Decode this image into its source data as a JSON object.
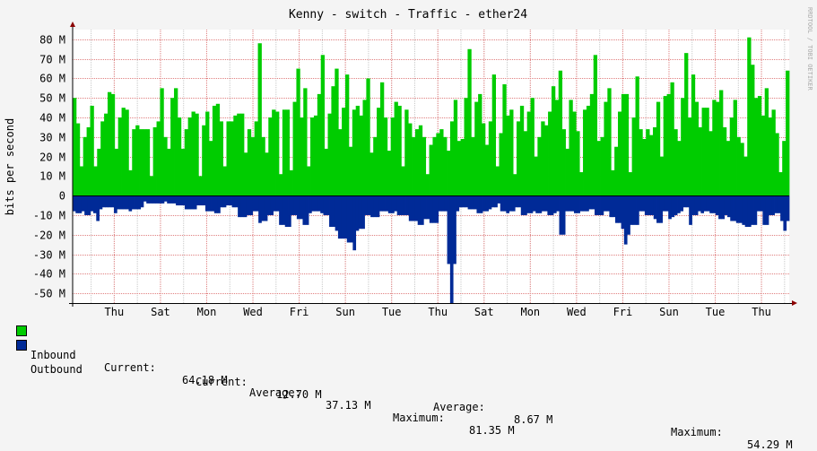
{
  "chart_data": {
    "type": "area",
    "title": "Kenny - switch - Traffic - ether24",
    "ylabel": "bits per second",
    "xlabel": "",
    "watermark": "RRDTOOL / TOBI OETIKER",
    "ylim": [
      -55,
      85
    ],
    "yticks": [
      {
        "v": 80,
        "label": "80 M"
      },
      {
        "v": 70,
        "label": "70 M"
      },
      {
        "v": 60,
        "label": "60 M"
      },
      {
        "v": 50,
        "label": "50 M"
      },
      {
        "v": 40,
        "label": "40 M"
      },
      {
        "v": 30,
        "label": "30 M"
      },
      {
        "v": 20,
        "label": "20 M"
      },
      {
        "v": 10,
        "label": "10 M"
      },
      {
        "v": 0,
        "label": "0"
      },
      {
        "v": -10,
        "label": "-10 M"
      },
      {
        "v": -20,
        "label": "-20 M"
      },
      {
        "v": -30,
        "label": "-30 M"
      },
      {
        "v": -40,
        "label": "-40 M"
      },
      {
        "v": -50,
        "label": "-50 M"
      }
    ],
    "day_ticks": [
      "Thu",
      "Sat",
      "Mon",
      "Wed",
      "Fri",
      "Sun",
      "Tue",
      "Thu",
      "Sat",
      "Mon",
      "Wed",
      "Fri",
      "Sun",
      "Tue",
      "Thu"
    ],
    "grid": true,
    "colors": {
      "inbound": "#00cc00",
      "outbound": "#002a97",
      "grid_major": "#e08080",
      "grid_minor": "#c8c8c8",
      "zero": "#000000"
    },
    "series": [
      {
        "name": "Inbound",
        "values": [
          50,
          37,
          15,
          30,
          35,
          46,
          15,
          24,
          38,
          42,
          53,
          52,
          24,
          40,
          45,
          44,
          13,
          34,
          36,
          34,
          34,
          34,
          10,
          35,
          38,
          55,
          30,
          24,
          50,
          55,
          40,
          24,
          34,
          40,
          43,
          42,
          10,
          36,
          43,
          28,
          46,
          47,
          38,
          15,
          38,
          38,
          41,
          42,
          42,
          22,
          34,
          30,
          38,
          78,
          30,
          22,
          40,
          44,
          43,
          11,
          44,
          44,
          13,
          48,
          65,
          40,
          55,
          15,
          40,
          41,
          52,
          72,
          24,
          42,
          56,
          65,
          34,
          45,
          62,
          25,
          44,
          46,
          41,
          49,
          60,
          22,
          30,
          45,
          58,
          40,
          23,
          40,
          48,
          46,
          15,
          44,
          37,
          30,
          34,
          36,
          30,
          11,
          26,
          30,
          32,
          34,
          30,
          23,
          38,
          49,
          28,
          29,
          50,
          75,
          30,
          48,
          52,
          37,
          26,
          38,
          62,
          15,
          32,
          57,
          41,
          44,
          11,
          38,
          46,
          33,
          43,
          50,
          20,
          30,
          38,
          36,
          43,
          56,
          49,
          64,
          34,
          24,
          49,
          43,
          33,
          12,
          44,
          46,
          52,
          72,
          28,
          30,
          48,
          55,
          13,
          25,
          43,
          52,
          52,
          12,
          40,
          61,
          34,
          29,
          34,
          31,
          35,
          48,
          20,
          51,
          52,
          58,
          34,
          28,
          50,
          73,
          40,
          62,
          48,
          35,
          45,
          45,
          33,
          49,
          48,
          54,
          35,
          28,
          40,
          49,
          30,
          27,
          20,
          81,
          67,
          50,
          51,
          41,
          55,
          40,
          44,
          32,
          12,
          28,
          64
        ],
        "current_label": "Current:",
        "current": "64.18 M",
        "average_label": "Average:",
        "average": "37.13 M",
        "maximum_label": "Maximum:",
        "maximum": "81.35 M"
      },
      {
        "name": "Outbound",
        "values": [
          8,
          9,
          9,
          8,
          10,
          10,
          8,
          9,
          13,
          7,
          6,
          6,
          6,
          6,
          9,
          7,
          7,
          7,
          7,
          8,
          7,
          7,
          7,
          6,
          3,
          4,
          4,
          4,
          4,
          4,
          4,
          3,
          4,
          4,
          4,
          5,
          5,
          5,
          7,
          7,
          7,
          7,
          5,
          5,
          5,
          8,
          8,
          8,
          9,
          9,
          6,
          6,
          5,
          5,
          6,
          6,
          11,
          11,
          11,
          10,
          10,
          8,
          8,
          14,
          13,
          13,
          10,
          10,
          8,
          8,
          15,
          15,
          16,
          16,
          10,
          10,
          12,
          12,
          15,
          15,
          9,
          8,
          8,
          8,
          9,
          10,
          10,
          16,
          16,
          18,
          22,
          22,
          22,
          24,
          24,
          28,
          18,
          17,
          17,
          10,
          10,
          11,
          11,
          11,
          8,
          8,
          8,
          9,
          9,
          8,
          10,
          10,
          10,
          10,
          13,
          13,
          13,
          15,
          15,
          12,
          12,
          14,
          14,
          14,
          8,
          8,
          8,
          35,
          55,
          35,
          8,
          6,
          6,
          6,
          7,
          7,
          7,
          9,
          9,
          8,
          8,
          7,
          6,
          6,
          4,
          8,
          8,
          9,
          8,
          8,
          6,
          6,
          10,
          10,
          9,
          9,
          8,
          9,
          9,
          8,
          8,
          10,
          10,
          9,
          8,
          20,
          20,
          8,
          8,
          8,
          9,
          9,
          8,
          8,
          8,
          7,
          7,
          10,
          10,
          10,
          8,
          8,
          11,
          11,
          14,
          14,
          17,
          25,
          20,
          15,
          15,
          15,
          8,
          8,
          10,
          10,
          10,
          12,
          14,
          14,
          8,
          8,
          12,
          11,
          10,
          9,
          8,
          6,
          6,
          15,
          10,
          10,
          8,
          9,
          8,
          8,
          9,
          9,
          10,
          12,
          12,
          10,
          11,
          13,
          13,
          14,
          14,
          15,
          16,
          16,
          15,
          15,
          8,
          8,
          15,
          15,
          10,
          10,
          9,
          9,
          13,
          18,
          13
        ],
        "current_label": "Current:",
        "current": "12.70 M",
        "average_label": "Average:",
        "average": "8.67 M",
        "maximum_label": "Maximum:",
        "maximum": "54.29 M"
      }
    ]
  }
}
